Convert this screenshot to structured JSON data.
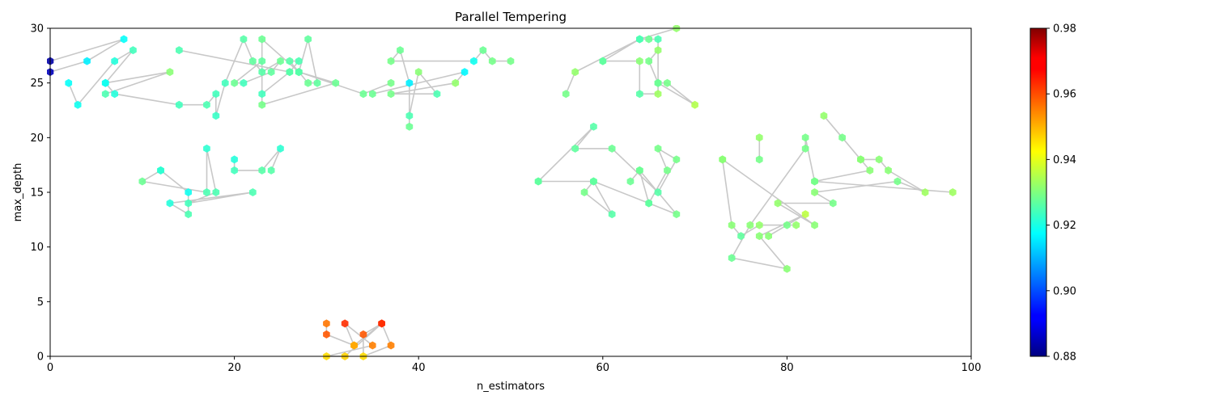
{
  "chart_data": {
    "type": "scatter",
    "title": "Parallel Tempering",
    "xlabel": "n_estimators",
    "ylabel": "max_depth",
    "xlim": [
      0,
      100
    ],
    "ylim": [
      0,
      30
    ],
    "xticks": [
      0,
      20,
      40,
      60,
      80,
      100
    ],
    "yticks": [
      0,
      5,
      10,
      15,
      20,
      25,
      30
    ],
    "grid": false,
    "colorbar": {
      "colormap": "jet",
      "range": [
        0.88,
        0.98
      ],
      "ticks": [
        0.88,
        0.9,
        0.92,
        0.94,
        0.96,
        0.98
      ]
    },
    "colors": {
      "path_line": "#c8c8c8",
      "axes": "#000000"
    },
    "paths": [
      {
        "points": [
          [
            0,
            27,
            0.884
          ],
          [
            8,
            29,
            0.918
          ],
          [
            4,
            27,
            0.916
          ],
          [
            0,
            26,
            0.886
          ]
        ]
      },
      {
        "points": [
          [
            2,
            25,
            0.918
          ],
          [
            3,
            23,
            0.919
          ],
          [
            7,
            27,
            0.921
          ],
          [
            9,
            28,
            0.924
          ],
          [
            6,
            25,
            0.919
          ],
          [
            7,
            24,
            0.921
          ],
          [
            14,
            23,
            0.924
          ],
          [
            17,
            23,
            0.925
          ],
          [
            18,
            24,
            0.924
          ],
          [
            18,
            22,
            0.923
          ],
          [
            19,
            25,
            0.924
          ],
          [
            21,
            29,
            0.926
          ],
          [
            22,
            27,
            0.927
          ],
          [
            23,
            26,
            0.926
          ],
          [
            25,
            27,
            0.928
          ],
          [
            24,
            26,
            0.927
          ],
          [
            21,
            25,
            0.924
          ],
          [
            20,
            25,
            0.928
          ],
          [
            23,
            27,
            0.927
          ],
          [
            23,
            24,
            0.924
          ],
          [
            26,
            26,
            0.926
          ],
          [
            27,
            27,
            0.925
          ],
          [
            26,
            27,
            0.926
          ],
          [
            27,
            26,
            0.926
          ],
          [
            28,
            25,
            0.928
          ],
          [
            29,
            25,
            0.927
          ],
          [
            28,
            29,
            0.927
          ],
          [
            27,
            26,
            0.926
          ],
          [
            31,
            25,
            0.928
          ],
          [
            23,
            23,
            0.929
          ],
          [
            23,
            29,
            0.928
          ],
          [
            27,
            26,
            0.926
          ],
          [
            34,
            24,
            0.928
          ],
          [
            37,
            25,
            0.929
          ]
        ]
      },
      {
        "points": [
          [
            6,
            24,
            0.925
          ],
          [
            13,
            26,
            0.931
          ],
          [
            6,
            25,
            0.919
          ]
        ]
      },
      {
        "points": [
          [
            14,
            28,
            0.925
          ],
          [
            26,
            26,
            0.926
          ]
        ]
      },
      {
        "points": [
          [
            35,
            24,
            0.928
          ],
          [
            45,
            26,
            0.917
          ],
          [
            44,
            25,
            0.932
          ],
          [
            37,
            24,
            0.929
          ],
          [
            42,
            24,
            0.925
          ],
          [
            40,
            26,
            0.931
          ],
          [
            39,
            22,
            0.925
          ],
          [
            39,
            21,
            0.928
          ],
          [
            39,
            25,
            0.916
          ],
          [
            38,
            28,
            0.928
          ],
          [
            37,
            27,
            0.929
          ],
          [
            46,
            27,
            0.919
          ],
          [
            47,
            28,
            0.928
          ],
          [
            48,
            27,
            0.929
          ],
          [
            50,
            27,
            0.929
          ]
        ]
      },
      {
        "points": [
          [
            12,
            17,
            0.922
          ],
          [
            10,
            16,
            0.928
          ],
          [
            17,
            15,
            0.925
          ],
          [
            17,
            19,
            0.922
          ],
          [
            18,
            15,
            0.925
          ],
          [
            15,
            14,
            0.924
          ],
          [
            22,
            15,
            0.925
          ],
          [
            13,
            14,
            0.921
          ],
          [
            15,
            13,
            0.925
          ],
          [
            15,
            15,
            0.919
          ],
          [
            12,
            17,
            0.922
          ]
        ]
      },
      {
        "points": [
          [
            20,
            18,
            0.921
          ],
          [
            20,
            17,
            0.924
          ],
          [
            23,
            17,
            0.926
          ],
          [
            25,
            19,
            0.922
          ],
          [
            24,
            17,
            0.926
          ]
        ]
      },
      {
        "points": [
          [
            30,
            3,
            0.956
          ],
          [
            30,
            2,
            0.959
          ],
          [
            33,
            1,
            0.951
          ],
          [
            32,
            3,
            0.963
          ],
          [
            35,
            1,
            0.955
          ],
          [
            30,
            0,
            0.946
          ],
          [
            32,
            0,
            0.947
          ],
          [
            36,
            3,
            0.963
          ],
          [
            37,
            1,
            0.955
          ],
          [
            34,
            0,
            0.946
          ],
          [
            34,
            2,
            0.959
          ],
          [
            36,
            3,
            0.963
          ],
          [
            33,
            1,
            0.951
          ]
        ]
      },
      {
        "points": [
          [
            60,
            27,
            0.927
          ],
          [
            64,
            29,
            0.925
          ],
          [
            65,
            29,
            0.928
          ],
          [
            66,
            29,
            0.925
          ],
          [
            66,
            25,
            0.928
          ],
          [
            67,
            25,
            0.929
          ],
          [
            70,
            23,
            0.935
          ],
          [
            66,
            25,
            0.928
          ],
          [
            65,
            27,
            0.929
          ],
          [
            66,
            28,
            0.932
          ],
          [
            66,
            24,
            0.933
          ],
          [
            64,
            24,
            0.926
          ],
          [
            64,
            27,
            0.931
          ],
          [
            60,
            27,
            0.927
          ]
        ]
      },
      {
        "points": [
          [
            56,
            24,
            0.929
          ],
          [
            57,
            26,
            0.932
          ],
          [
            64,
            29,
            0.925
          ],
          [
            68,
            30,
            0.932
          ]
        ]
      },
      {
        "points": [
          [
            53,
            16,
            0.927
          ],
          [
            59,
            21,
            0.926
          ],
          [
            57,
            19,
            0.927
          ],
          [
            61,
            19,
            0.928
          ],
          [
            66,
            15,
            0.926
          ],
          [
            68,
            18,
            0.929
          ],
          [
            66,
            19,
            0.929
          ],
          [
            67,
            17,
            0.929
          ],
          [
            65,
            14,
            0.927
          ],
          [
            64,
            17,
            0.928
          ],
          [
            63,
            16,
            0.928
          ],
          [
            64,
            17,
            0.928
          ],
          [
            68,
            13,
            0.929
          ],
          [
            65,
            14,
            0.927
          ],
          [
            59,
            16,
            0.927
          ],
          [
            61,
            13,
            0.926
          ],
          [
            58,
            15,
            0.929
          ],
          [
            59,
            16,
            0.927
          ],
          [
            53,
            16,
            0.927
          ]
        ]
      },
      {
        "points": [
          [
            73,
            18,
            0.931
          ],
          [
            74,
            12,
            0.931
          ],
          [
            75,
            11,
            0.927
          ],
          [
            77,
            12,
            0.932
          ],
          [
            81,
            12,
            0.932
          ],
          [
            80,
            12,
            0.929
          ],
          [
            78,
            11,
            0.931
          ],
          [
            82,
            13,
            0.936
          ],
          [
            77,
            11,
            0.931
          ],
          [
            80,
            8,
            0.931
          ],
          [
            74,
            9,
            0.928
          ],
          [
            76,
            12,
            0.931
          ],
          [
            82,
            19,
            0.929
          ],
          [
            82,
            20,
            0.929
          ],
          [
            83,
            16,
            0.929
          ],
          [
            89,
            17,
            0.931
          ],
          [
            88,
            18,
            0.931
          ],
          [
            84,
            22,
            0.932
          ],
          [
            86,
            20,
            0.929
          ],
          [
            88,
            18,
            0.931
          ],
          [
            90,
            18,
            0.931
          ],
          [
            91,
            17,
            0.931
          ],
          [
            95,
            15,
            0.933
          ],
          [
            92,
            16,
            0.929
          ],
          [
            83,
            15,
            0.931
          ],
          [
            85,
            14,
            0.929
          ],
          [
            79,
            14,
            0.932
          ],
          [
            83,
            12,
            0.931
          ],
          [
            73,
            18,
            0.931
          ]
        ]
      },
      {
        "points": [
          [
            77,
            18,
            0.929
          ],
          [
            77,
            20,
            0.932
          ]
        ]
      },
      {
        "points": [
          [
            83,
            16,
            0.929
          ],
          [
            98,
            15,
            0.933
          ]
        ]
      }
    ]
  }
}
